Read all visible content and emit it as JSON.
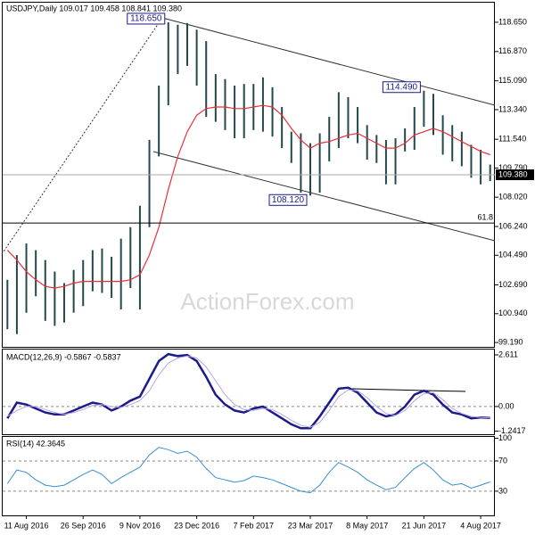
{
  "chart_data": [
    {
      "type": "ohlc",
      "title": "USDJPY,Daily  109.017 109.458 108.841 109.380",
      "watermark": "ActionForex.com",
      "categories": [
        null,
        null,
        "11 Aug 2016",
        null,
        null,
        null,
        null,
        null,
        "26 Sep 2016",
        null,
        null,
        null,
        null,
        null,
        "9 Nov 2016",
        null,
        null,
        null,
        null,
        null,
        "23 Dec 2016",
        null,
        null,
        null,
        null,
        null,
        "7 Feb 2017",
        null,
        null,
        null,
        null,
        null,
        "23 Mar 2017",
        null,
        null,
        null,
        null,
        null,
        "8 May 2017",
        null,
        null,
        null,
        null,
        null,
        "21 Jun 2017",
        null,
        null,
        null,
        null,
        null,
        "4 Aug 2017",
        null
      ],
      "high": [
        103.0,
        104.5,
        105.2,
        104.8,
        104.2,
        103.5,
        102.8,
        103.6,
        104.2,
        104.8,
        104.9,
        104.4,
        105.5,
        106.2,
        107.5,
        111.5,
        114.8,
        118.65,
        118.5,
        118.6,
        118.2,
        117.5,
        115.5,
        115.2,
        114.8,
        114.9,
        114.9,
        115.3,
        114.7,
        113.5,
        112.0,
        111.9,
        111.3,
        111.9,
        112.9,
        114.4,
        114.1,
        113.5,
        112.4,
        111.8,
        111.5,
        111.6,
        112.2,
        113.5,
        114.49,
        114.3,
        113.0,
        112.4,
        112.0,
        111.2,
        110.9,
        110.0
      ],
      "low": [
        100.0,
        99.7,
        101.0,
        102.0,
        100.5,
        100.2,
        100.4,
        101.0,
        101.4,
        102.3,
        102.2,
        101.9,
        101.2,
        102.5,
        101.2,
        106.2,
        110.5,
        113.6,
        115.5,
        116.0,
        114.8,
        112.9,
        112.6,
        112.1,
        111.6,
        111.6,
        112.1,
        112.0,
        111.7,
        111.0,
        110.1,
        108.3,
        108.12,
        108.3,
        110.2,
        111.0,
        111.6,
        111.3,
        110.3,
        110.1,
        108.8,
        108.8,
        110.8,
        110.9,
        112.3,
        111.8,
        110.6,
        110.2,
        109.9,
        109.2,
        108.8,
        109.0
      ],
      "color": "#24494a",
      "ma": {
        "color": "#e8303a",
        "values": [
          104.8,
          104.2,
          103.5,
          103.0,
          102.6,
          102.5,
          102.6,
          102.8,
          102.9,
          102.9,
          102.9,
          102.9,
          102.9,
          103.0,
          103.3,
          104.5,
          106.2,
          108.5,
          110.5,
          112.0,
          113.0,
          113.4,
          113.5,
          113.5,
          113.4,
          113.4,
          113.5,
          113.6,
          113.5,
          113.0,
          112.2,
          111.5,
          111.0,
          111.3,
          111.4,
          111.6,
          111.8,
          111.9,
          111.6,
          111.3,
          111.0,
          111.0,
          111.3,
          111.8,
          112.0,
          112.2,
          112.0,
          111.7,
          111.4,
          111.1,
          110.8,
          110.6
        ]
      },
      "annotations": [
        {
          "label": "118.650",
          "value": 118.65
        },
        {
          "label": "108.120",
          "value": 108.12
        },
        {
          "label": "114.490",
          "value": 114.49
        }
      ],
      "level": {
        "label": "61.8",
        "value": 106.45
      },
      "last_price": {
        "value": 109.38,
        "label": "109.380"
      },
      "ylim": [
        98.87,
        119.84
      ],
      "yticks": [
        {
          "value": 118.65,
          "label": "118.650"
        },
        {
          "value": 116.87,
          "label": "116.870"
        },
        {
          "value": 115.09,
          "label": "115.090"
        },
        {
          "value": 113.34,
          "label": "113.340"
        },
        {
          "value": 111.54,
          "label": "111.540"
        },
        {
          "value": 109.79,
          "label": "109.790"
        },
        {
          "value": 108.02,
          "label": "108.020"
        },
        {
          "value": 106.24,
          "label": "106.240"
        },
        {
          "value": 104.49,
          "label": "104.490"
        },
        {
          "value": 102.69,
          "label": "102.690"
        },
        {
          "value": 100.94,
          "label": "100.940"
        },
        {
          "value": 99.19,
          "label": "99.190"
        }
      ]
    },
    {
      "type": "line",
      "title": "MACD(12,26,9) -0.5867 -0.5837",
      "series": [
        {
          "color": "#1b1b8a",
          "width": 2.5,
          "values": [
            -0.6,
            0.2,
            0.1,
            -0.1,
            -0.3,
            -0.4,
            -0.4,
            -0.2,
            0.0,
            0.2,
            0.1,
            -0.2,
            0.0,
            0.3,
            0.5,
            1.4,
            2.3,
            2.65,
            2.55,
            2.6,
            2.3,
            1.5,
            0.6,
            0.1,
            -0.2,
            -0.3,
            -0.1,
            0.0,
            -0.3,
            -0.6,
            -0.9,
            -1.1,
            -1.1,
            -0.5,
            0.2,
            0.9,
            0.95,
            0.7,
            0.2,
            -0.3,
            -0.5,
            -0.4,
            0.0,
            0.6,
            0.8,
            0.6,
            0.1,
            -0.3,
            -0.4,
            -0.6,
            -0.55,
            -0.5867
          ]
        },
        {
          "color": "#b4a6e6",
          "width": 1,
          "values": [
            -0.5,
            -0.2,
            0.0,
            0.0,
            -0.15,
            -0.3,
            -0.4,
            -0.3,
            -0.15,
            0.05,
            0.1,
            0.0,
            -0.05,
            0.1,
            0.3,
            0.8,
            1.6,
            2.2,
            2.45,
            2.55,
            2.45,
            2.0,
            1.3,
            0.6,
            0.1,
            -0.15,
            -0.2,
            -0.1,
            -0.15,
            -0.4,
            -0.7,
            -0.95,
            -1.05,
            -0.8,
            -0.2,
            0.5,
            0.85,
            0.8,
            0.45,
            0.0,
            -0.35,
            -0.45,
            -0.2,
            0.3,
            0.65,
            0.7,
            0.35,
            -0.1,
            -0.35,
            -0.5,
            -0.55,
            -0.5837
          ]
        }
      ],
      "ylim": [
        -1.4,
        2.88
      ],
      "yticks": [
        2.611,
        {
          "value": 0,
          "label": "0.00"
        },
        -1.2417
      ],
      "dashed_levels": [
        0
      ]
    },
    {
      "type": "line",
      "title": "RSI(14) 42.3645",
      "series": [
        {
          "color": "#3a8fd0",
          "width": 1,
          "values": [
            40,
            58,
            55,
            45,
            38,
            36,
            38,
            45,
            52,
            58,
            52,
            40,
            48,
            55,
            62,
            78,
            88,
            85,
            80,
            83,
            75,
            60,
            48,
            45,
            42,
            44,
            50,
            48,
            45,
            40,
            35,
            30,
            28,
            38,
            55,
            68,
            62,
            55,
            45,
            38,
            32,
            35,
            48,
            60,
            68,
            58,
            45,
            38,
            40,
            34,
            38,
            42.3645
          ]
        }
      ],
      "ylim": [
        -2,
        103
      ],
      "yticks": [
        100,
        70,
        30
      ],
      "dashed_levels": [
        70,
        30
      ]
    }
  ]
}
